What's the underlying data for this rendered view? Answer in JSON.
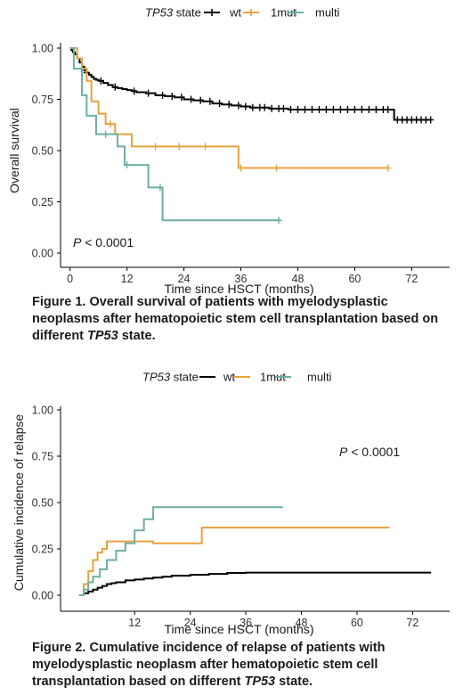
{
  "chart_data": [
    {
      "type": "line",
      "subtype": "kaplan-meier",
      "legend": {
        "title": "TP53",
        "title_suffix": "state",
        "position": "top",
        "labels": [
          "wt",
          "1mut",
          "multi"
        ]
      },
      "xlabel": "Time since HSCT (months)",
      "ylabel": "Overall survival",
      "xlim": [
        -2,
        80
      ],
      "ylim": [
        0,
        1
      ],
      "xticks": [
        0,
        12,
        24,
        36,
        48,
        60,
        72
      ],
      "yticks": [
        "0.00",
        "0.25",
        "0.50",
        "0.75",
        "1.00"
      ],
      "annotation": {
        "p_symbol": "P",
        "p_text": "< 0.0001"
      },
      "grid": false,
      "series": [
        {
          "name": "wt",
          "color": "#000000",
          "steps": [
            [
              0,
              1.0
            ],
            [
              0.3,
              0.99
            ],
            [
              0.6,
              0.98
            ],
            [
              1,
              0.97
            ],
            [
              1.5,
              0.95
            ],
            [
              2,
              0.93
            ],
            [
              2.5,
              0.91
            ],
            [
              3,
              0.89
            ],
            [
              3.5,
              0.88
            ],
            [
              4,
              0.87
            ],
            [
              4.5,
              0.86
            ],
            [
              5,
              0.85
            ],
            [
              5.5,
              0.845
            ],
            [
              6,
              0.84
            ],
            [
              7,
              0.83
            ],
            [
              8,
              0.82
            ],
            [
              9,
              0.81
            ],
            [
              10,
              0.805
            ],
            [
              11,
              0.8
            ],
            [
              12,
              0.795
            ],
            [
              13,
              0.79
            ],
            [
              14,
              0.785
            ],
            [
              16,
              0.78
            ],
            [
              18,
              0.77
            ],
            [
              20,
              0.765
            ],
            [
              22,
              0.76
            ],
            [
              24,
              0.75
            ],
            [
              26,
              0.745
            ],
            [
              28,
              0.74
            ],
            [
              30,
              0.73
            ],
            [
              32,
              0.725
            ],
            [
              34,
              0.72
            ],
            [
              36,
              0.715
            ],
            [
              38,
              0.71
            ],
            [
              42,
              0.705
            ],
            [
              46,
              0.7
            ],
            [
              68,
              0.7
            ],
            [
              68.3,
              0.65
            ],
            [
              76,
              0.65
            ]
          ],
          "censor": [
            3.5,
            6.5,
            9.5,
            13.5,
            16.5,
            19.5,
            21.5,
            23.5,
            25.5,
            27.5,
            29.5,
            31.5,
            33.5,
            35.5,
            37,
            38.5,
            40,
            41,
            42.5,
            44,
            45,
            46.5,
            48,
            49.5,
            51,
            52.5,
            54,
            55.5,
            57,
            58.5,
            60,
            61.5,
            63,
            64.5,
            66,
            67,
            69,
            70,
            71,
            72,
            73,
            74,
            75,
            76
          ]
        },
        {
          "name": "1mut",
          "color": "#E8A23C",
          "steps": [
            [
              0,
              1.0
            ],
            [
              1.5,
              0.95
            ],
            [
              2.5,
              0.9
            ],
            [
              3.5,
              0.84
            ],
            [
              4.5,
              0.74
            ],
            [
              6,
              0.68
            ],
            [
              7.5,
              0.63
            ],
            [
              9.5,
              0.58
            ],
            [
              13,
              0.52
            ],
            [
              35.5,
              0.52
            ],
            [
              35.5,
              0.415
            ],
            [
              67,
              0.415
            ]
          ],
          "censor": [
            8.5,
            18,
            23,
            28.5,
            36,
            43.5,
            67
          ]
        },
        {
          "name": "multi",
          "color": "#6DAEA5",
          "steps": [
            [
              0,
              1.0
            ],
            [
              0.8,
              0.9
            ],
            [
              2.5,
              0.77
            ],
            [
              3.5,
              0.67
            ],
            [
              5.5,
              0.58
            ],
            [
              10,
              0.52
            ],
            [
              11.5,
              0.43
            ],
            [
              16.5,
              0.43
            ],
            [
              16.5,
              0.32
            ],
            [
              19.5,
              0.32
            ],
            [
              19.5,
              0.16
            ],
            [
              44,
              0.16
            ]
          ],
          "censor": [
            7.5,
            12,
            19,
            44
          ]
        }
      ]
    },
    {
      "type": "line",
      "subtype": "cumulative-incidence",
      "legend": {
        "title": "TP53",
        "title_suffix": "state",
        "position": "top",
        "labels": [
          "wt",
          "1mut",
          "multi"
        ]
      },
      "xlabel": "Time since HSCT (months)",
      "ylabel": "Cumulative incidence of relapse",
      "xlim": [
        -4,
        80
      ],
      "ylim": [
        0,
        1
      ],
      "xticks": [
        12,
        24,
        36,
        48,
        60,
        72
      ],
      "yticks": [
        "0.00",
        "0.25",
        "0.50",
        "0.75",
        "1.00"
      ],
      "annotation": {
        "p_symbol": "P",
        "p_text": "< 0.0001"
      },
      "grid": false,
      "series": [
        {
          "name": "wt",
          "color": "#000000",
          "steps": [
            [
              0.2,
              0.0
            ],
            [
              1,
              0.01
            ],
            [
              2,
              0.02
            ],
            [
              3,
              0.03
            ],
            [
              4,
              0.04
            ],
            [
              5,
              0.05
            ],
            [
              6,
              0.06
            ],
            [
              7,
              0.065
            ],
            [
              8,
              0.07
            ],
            [
              10,
              0.08
            ],
            [
              12,
              0.085
            ],
            [
              14,
              0.09
            ],
            [
              16,
              0.095
            ],
            [
              18,
              0.1
            ],
            [
              20,
              0.105
            ],
            [
              24,
              0.11
            ],
            [
              28,
              0.115
            ],
            [
              32,
              0.12
            ],
            [
              36,
              0.122
            ],
            [
              76,
              0.122
            ]
          ]
        },
        {
          "name": "1mut",
          "color": "#E8A23C",
          "steps": [
            [
              0,
              0.0
            ],
            [
              1,
              0.06
            ],
            [
              2,
              0.13
            ],
            [
              3,
              0.19
            ],
            [
              4,
              0.23
            ],
            [
              5,
              0.25
            ],
            [
              6,
              0.29
            ],
            [
              16,
              0.29
            ],
            [
              16,
              0.28
            ],
            [
              26.5,
              0.28
            ],
            [
              26.5,
              0.365
            ],
            [
              67,
              0.365
            ]
          ]
        },
        {
          "name": "multi",
          "color": "#6DAEA5",
          "steps": [
            [
              0,
              0.0
            ],
            [
              1,
              0.03
            ],
            [
              2,
              0.07
            ],
            [
              3,
              0.1
            ],
            [
              4.5,
              0.14
            ],
            [
              6,
              0.19
            ],
            [
              8,
              0.24
            ],
            [
              10,
              0.28
            ],
            [
              12,
              0.35
            ],
            [
              14,
              0.41
            ],
            [
              16,
              0.475
            ],
            [
              44,
              0.475
            ]
          ]
        }
      ]
    }
  ],
  "captions": {
    "fig1_label": "Figure 1.",
    "fig1_text_a": "Overall survival of patients with myelodysplastic neoplasms after hematopoietic stem cell transplantation based on different",
    "fig1_em": "TP53",
    "fig1_text_b": "state.",
    "fig2_label": "Figure 2.",
    "fig2_text_a": "Cumulative incidence of relapse of patients with myelodysplastic neoplasm after hematopoietic stem cell transplantation based on different",
    "fig2_em": "TP53",
    "fig2_text_b": "state."
  }
}
